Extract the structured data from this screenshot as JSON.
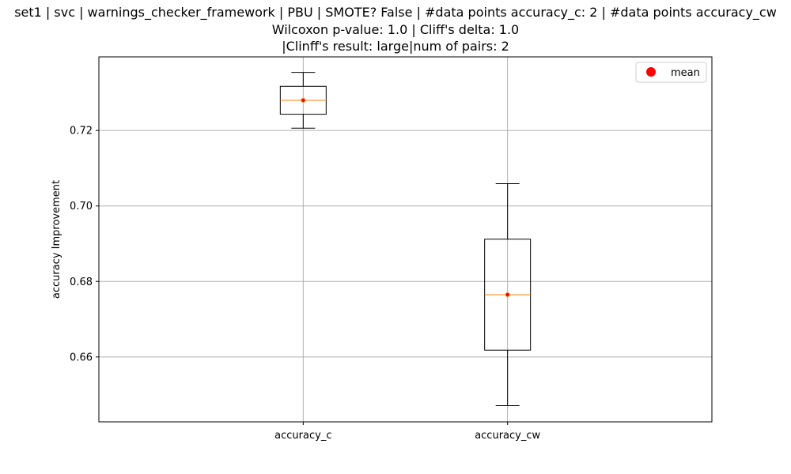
{
  "chart_data": {
    "type": "box",
    "title_lines": [
      "set1 | svc | warnings_checker_framework | PBU | SMOTE? False | #data points accuracy_c: 2 | #data points accuracy_cw",
      "Wilcoxon p-value: 1.0 | Cliff's delta: 1.0",
      "|Clinff's result: large|num of pairs: 2"
    ],
    "xlabel": "",
    "ylabel": "accuracy Improvement",
    "ylim": [
      0.6428,
      0.7395
    ],
    "yticks": [
      0.66,
      0.68,
      0.7,
      0.72
    ],
    "ytick_labels": [
      "0.66",
      "0.68",
      "0.70",
      "0.72"
    ],
    "grid": true,
    "legend": {
      "position": "top-right",
      "entries": [
        {
          "label": "mean",
          "marker": "circle",
          "color": "#ff0000"
        }
      ]
    },
    "categories": [
      "accuracy_c",
      "accuracy_cw"
    ],
    "boxes": [
      {
        "name": "accuracy_c",
        "whisker_low": 0.7206,
        "q1": 0.7243,
        "median": 0.728,
        "q3": 0.7317,
        "whisker_high": 0.7354,
        "mean": 0.728
      },
      {
        "name": "accuracy_cw",
        "whisker_low": 0.6471,
        "q1": 0.6618,
        "median": 0.6765,
        "q3": 0.6912,
        "whisker_high": 0.7059,
        "mean": 0.6765
      }
    ],
    "colors": {
      "box": "#000000",
      "median": "#ff7f0e",
      "mean": "#ff0000",
      "grid": "#b0b0b0"
    }
  }
}
